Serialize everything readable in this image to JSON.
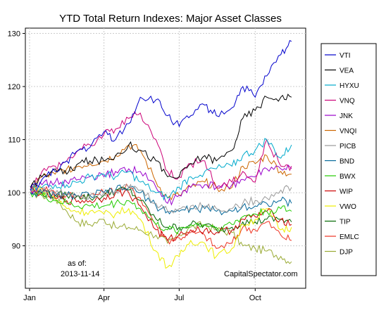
{
  "chart_data": {
    "type": "line",
    "title": "YTD Total Return Indexes: Major Asset Classes",
    "xlabel": "",
    "ylabel": "",
    "x_ticks": [
      "Jan",
      "Apr",
      "Jul",
      "Oct"
    ],
    "y_ticks": [
      90,
      100,
      110,
      120,
      130
    ],
    "ylim": [
      82,
      131
    ],
    "x_dates": [
      "2013-01-02",
      "2013-01-16",
      "2013-02-01",
      "2013-02-15",
      "2013-03-01",
      "2013-03-15",
      "2013-04-01",
      "2013-04-15",
      "2013-05-01",
      "2013-05-15",
      "2013-06-03",
      "2013-06-17",
      "2013-07-01",
      "2013-07-15",
      "2013-08-01",
      "2013-08-15",
      "2013-09-03",
      "2013-09-16",
      "2013-10-01",
      "2013-10-15",
      "2013-11-01",
      "2013-11-14"
    ],
    "grid": true,
    "legend_position": "right",
    "annotation_asof": "as of:",
    "annotation_date": "2013-11-14",
    "annotation_source": "CapitalSpectator.com",
    "series": [
      {
        "name": "VTI",
        "color": "#0000CC",
        "values": [
          100.5,
          102.5,
          104,
          106,
          108,
          108.5,
          111.5,
          110,
          113,
          118,
          117.5,
          114.5,
          112.5,
          114.5,
          116.5,
          114.5,
          116,
          120,
          118,
          122,
          126,
          128.5
        ]
      },
      {
        "name": "VEA",
        "color": "#000000",
        "values": [
          101,
          103,
          104.5,
          103.5,
          105.5,
          106,
          106,
          107,
          109,
          108,
          106,
          103,
          103,
          105.5,
          107,
          106,
          108,
          114,
          115.5,
          118,
          118,
          118
        ]
      },
      {
        "name": "HYXU",
        "color": "#00AACC",
        "values": [
          100.5,
          101,
          101.5,
          101.5,
          102,
          103,
          103.5,
          103,
          104,
          102,
          100,
          99,
          101,
          103,
          104,
          104.5,
          105,
          107,
          108,
          110,
          106.5,
          109
        ]
      },
      {
        "name": "VNQ",
        "color": "#CC0077",
        "values": [
          101,
          104,
          105,
          106,
          108,
          109,
          111,
          112,
          114,
          115,
          110,
          104,
          103,
          105.5,
          106,
          101,
          102,
          104,
          102,
          110,
          105,
          105
        ]
      },
      {
        "name": "JNK",
        "color": "#9900CC",
        "values": [
          100.5,
          101.5,
          102,
          102,
          102.5,
          103,
          103,
          104,
          104.5,
          104,
          101,
          98,
          99.5,
          101,
          101.5,
          101,
          101.5,
          102.5,
          103,
          104.5,
          104.5,
          104.5
        ]
      },
      {
        "name": "VNQI",
        "color": "#CC6600",
        "values": [
          101,
          103,
          103.5,
          104.5,
          105,
          105.5,
          106,
          107,
          109,
          108,
          102,
          99,
          99.5,
          101,
          102,
          101,
          101,
          105,
          105.5,
          107,
          104,
          103.5
        ]
      },
      {
        "name": "PICB",
        "color": "#999999",
        "values": [
          100.5,
          100.5,
          100,
          100,
          99.5,
          99.5,
          100,
          100.5,
          101,
          100.5,
          98,
          96.5,
          97,
          97.5,
          97.5,
          97,
          97,
          98,
          98.5,
          99,
          100.5,
          101
        ]
      },
      {
        "name": "BND",
        "color": "#006699",
        "values": [
          100,
          100,
          99.5,
          99.5,
          99.5,
          99.5,
          100,
          100.5,
          101,
          100,
          97.5,
          96.5,
          96.5,
          97,
          97,
          96.5,
          96.5,
          97.5,
          97.5,
          98,
          98.5,
          98
        ]
      },
      {
        "name": "BWX",
        "color": "#22CC00",
        "values": [
          100,
          99.5,
          98.5,
          98,
          97.5,
          97.5,
          97.5,
          98,
          98.5,
          97,
          94,
          93,
          93,
          94,
          94,
          93.5,
          94,
          95.5,
          96,
          96.5,
          97,
          96.5
        ]
      },
      {
        "name": "WIP",
        "color": "#CC0000",
        "values": [
          100.5,
          100,
          99,
          98.5,
          98.5,
          98.5,
          99,
          100,
          100,
          97.5,
          93,
          91,
          92,
          93,
          93,
          92.5,
          93,
          95,
          95.5,
          96.5,
          95,
          94
        ]
      },
      {
        "name": "VWO",
        "color": "#EEEE00",
        "values": [
          101,
          100.5,
          99,
          97,
          96.5,
          96.5,
          96,
          96,
          97,
          95,
          89,
          86,
          88,
          91,
          90.5,
          88,
          89.5,
          94,
          95,
          97,
          93,
          93.5
        ]
      },
      {
        "name": "TIP",
        "color": "#006600",
        "values": [
          100,
          100,
          99.5,
          99.5,
          99.5,
          99,
          99.5,
          100.5,
          100.5,
          98.5,
          95,
          93.5,
          93.5,
          94,
          94,
          93,
          93.5,
          94.5,
          94.5,
          95,
          95,
          94.5
        ]
      },
      {
        "name": "EMLC",
        "color": "#EE3322",
        "values": [
          100.5,
          101,
          100,
          99.5,
          99.5,
          99.5,
          100,
          100.5,
          101,
          99,
          94,
          91,
          91.5,
          92.5,
          92,
          89.5,
          90.5,
          93.5,
          93,
          94.5,
          92,
          91
        ]
      },
      {
        "name": "DJP",
        "color": "#99AA33",
        "values": [
          100,
          99.5,
          99,
          96.5,
          94.5,
          94,
          95,
          93.5,
          93.5,
          93,
          92,
          90.5,
          92,
          93.5,
          94,
          93,
          92.5,
          90,
          89.5,
          89,
          88,
          87
        ]
      }
    ]
  }
}
